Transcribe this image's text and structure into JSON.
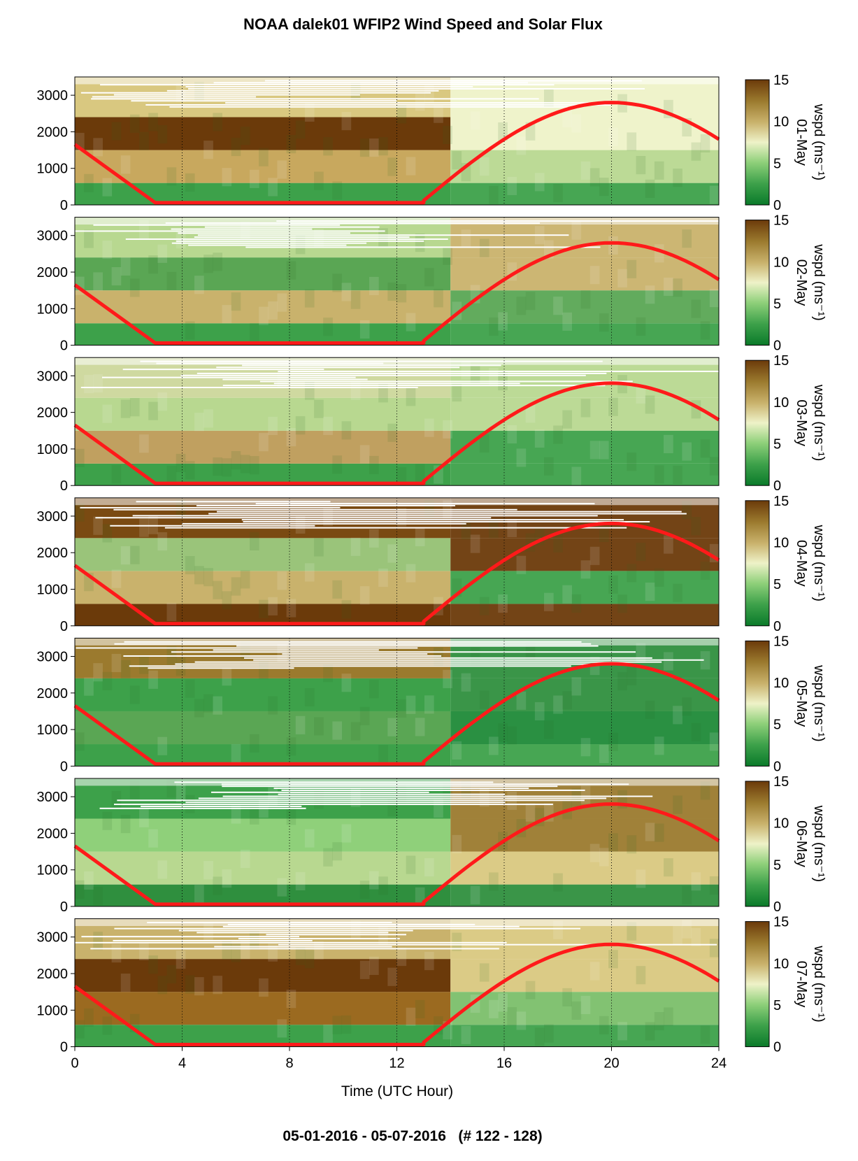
{
  "chart_data": {
    "type": "heatmap",
    "title": "NOAA dalek01 WFIP2 Wind Speed and Solar Flux",
    "xlabel": "Time (UTC Hour)",
    "footer": "05-01-2016 - 05-07-2016   (# 122 - 128)",
    "x_ticks": [
      "0",
      "4",
      "8",
      "12",
      "16",
      "20",
      "24"
    ],
    "y_ticks": [
      "0",
      "1000",
      "2000",
      "3000"
    ],
    "xlim": [
      0,
      24
    ],
    "ylim": [
      0,
      3500
    ],
    "grid": "dotted vertical at 4,8,12,16,20",
    "colorbar": {
      "label": "wspd (ms⁻¹)",
      "ticks": [
        "0",
        "5",
        "10",
        "15"
      ],
      "range": [
        0,
        15
      ],
      "colors": [
        "#0a7a2a",
        "#3da14a",
        "#8fd07a",
        "#eef2c8",
        "#c9b26c",
        "#9b7a2e",
        "#6b3a0a"
      ]
    },
    "solar_flux_curve": {
      "color": "#ff1a1a",
      "points": [
        [
          0,
          1650
        ],
        [
          3,
          60
        ],
        [
          13,
          60
        ],
        [
          16,
          1750
        ],
        [
          18,
          2550
        ],
        [
          20,
          2800
        ],
        [
          22,
          2550
        ],
        [
          24,
          1800
        ]
      ]
    },
    "panels": [
      {
        "date_label": "01-May",
        "colors": {
          "top": "#d9c880",
          "upper": "#6b3a0a",
          "mid": "#c8a85e",
          "low": "#3da14a",
          "late_top": "#eef2c8",
          "late_mid": "#b8d890"
        }
      },
      {
        "date_label": "02-May",
        "colors": {
          "top": "#b8d890",
          "upper": "#5aa654",
          "mid": "#c9b26c",
          "low": "#3da14a",
          "late_top": "#c9b26c",
          "late_mid": "#5aa654"
        }
      },
      {
        "date_label": "03-May",
        "colors": {
          "top": "#cfd9a0",
          "upper": "#b8d890",
          "mid": "#c0a060",
          "low": "#3da14a",
          "late_top": "#b8d890",
          "late_mid": "#3da14a"
        }
      },
      {
        "date_label": "04-May",
        "colors": {
          "top": "#7a4a12",
          "upper": "#9ac47a",
          "mid": "#c9b26c",
          "low": "#6b3a0a",
          "late_top": "#6b3a0a",
          "late_mid": "#3da14a"
        }
      },
      {
        "date_label": "05-May",
        "colors": {
          "top": "#9b7a2e",
          "upper": "#3da14a",
          "mid": "#5aa654",
          "low": "#3da14a",
          "late_top": "#2f8f3e",
          "late_mid": "#1f8a38"
        }
      },
      {
        "date_label": "06-May",
        "colors": {
          "top": "#3da14a",
          "upper": "#8fd07a",
          "mid": "#b8d890",
          "low": "#2f8f3e",
          "late_top": "#9b7a2e",
          "late_mid": "#d9c880"
        }
      },
      {
        "date_label": "07-May",
        "colors": {
          "top": "#c9b26c",
          "upper": "#6b3a0a",
          "mid": "#9b6a20",
          "low": "#3da14a",
          "late_top": "#d9c880",
          "late_mid": "#7bbf6a"
        }
      }
    ]
  }
}
